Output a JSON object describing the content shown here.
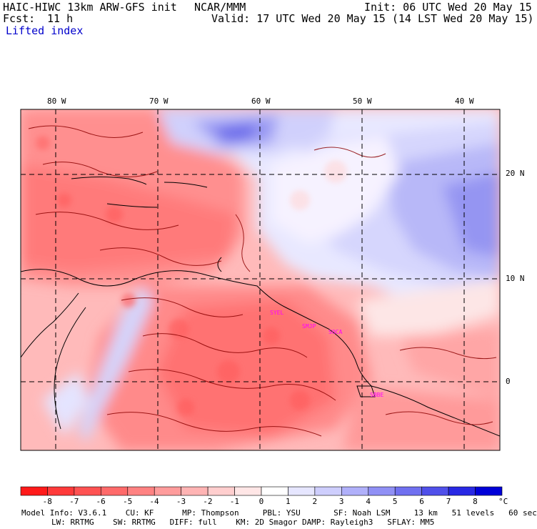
{
  "header": {
    "model": "HAIC-HIWC 13km ARW-GFS init",
    "org": "NCAR/MMM",
    "init": "Init: 06 UTC Wed 20 May 15",
    "fcst_label": "Fcst:",
    "fcst_value": "11 h",
    "valid": "Valid: 17 UTC Wed 20 May 15 (14 LST Wed 20 May 15)",
    "field": "Lifted index"
  },
  "axes": {
    "lon_labels": [
      "80 W",
      "70 W",
      "60 W",
      "50 W",
      "40 W"
    ],
    "lat_labels": [
      "20 N",
      "10 N",
      "0"
    ]
  },
  "stations": [
    "SYEL",
    "SMJP",
    "SOCA",
    "SBBE"
  ],
  "colorbar": {
    "levels": [
      "-8",
      "-7",
      "-6",
      "-5",
      "-4",
      "-3",
      "-2",
      "-1",
      "0",
      "1",
      "2",
      "3",
      "4",
      "5",
      "6",
      "7",
      "8"
    ],
    "unit": "°C",
    "colors": [
      "#ff1a1a",
      "#ff3a3a",
      "#ff5252",
      "#ff6a6a",
      "#ff8282",
      "#ff9c9c",
      "#ffb4b4",
      "#ffcece",
      "#ffe6e6",
      "#ffffff",
      "#e6e6ff",
      "#cecefd",
      "#b0b0fa",
      "#9090f5",
      "#7070f0",
      "#5050ea",
      "#2828e4",
      "#0000d8"
    ]
  },
  "footer": {
    "line1": "Model Info: V3.6.1    CU: KF      MP: Thompson     PBL: YSU       SF: Noah LSM     13 km   51 levels   60 sec",
    "line2": "LW: RRTMG    SW: RRTMG   DIFF: full    KM: 2D Smagor DAMP: Rayleigh3   SFLAY: MM5"
  }
}
